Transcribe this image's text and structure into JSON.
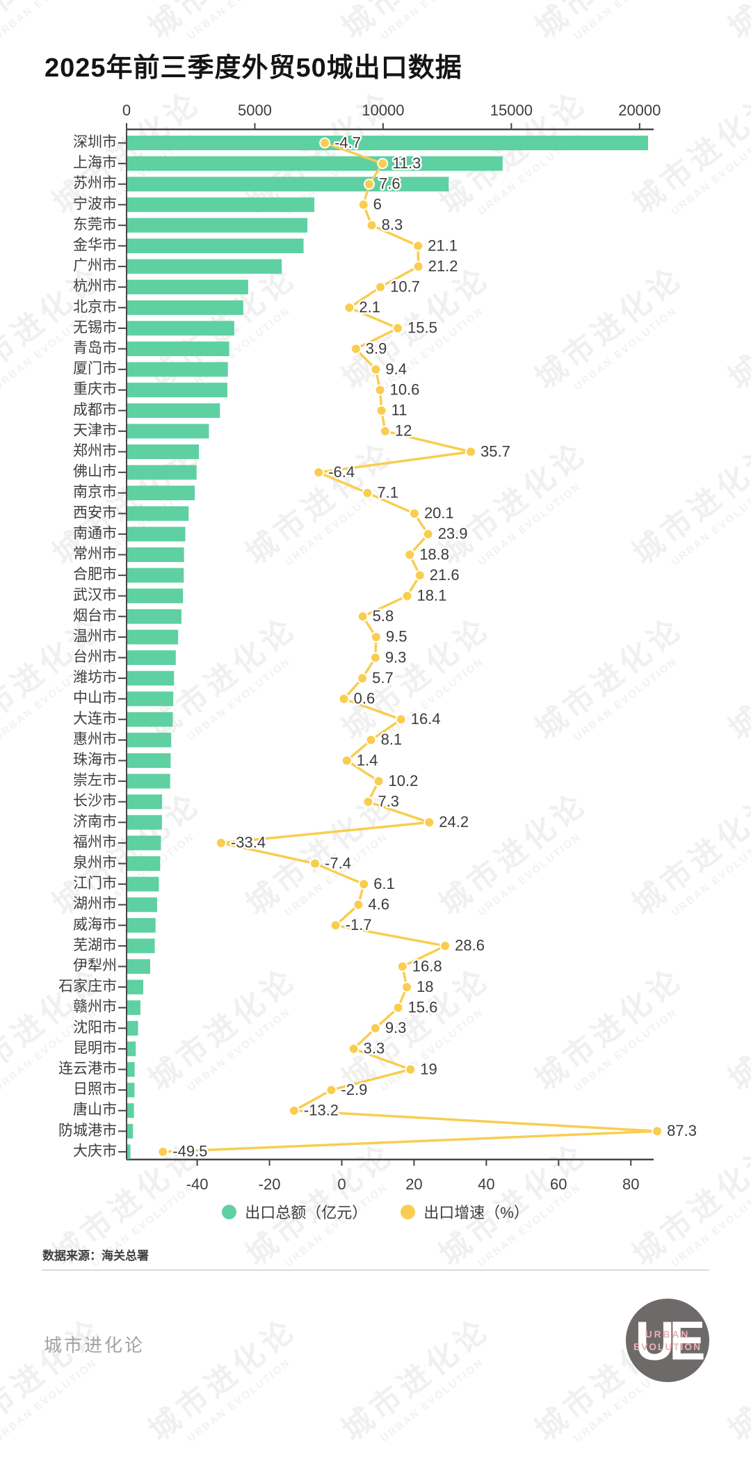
{
  "title": "2025年前三季度外贸50城出口数据",
  "source_note": "数据来源：海关总署",
  "watermark": {
    "text_cn": "城市进化论",
    "text_en": "URBAN EVOLUTION"
  },
  "legend": [
    {
      "label": "出口总额（亿元）",
      "color": "#5ed0a2"
    },
    {
      "label": "出口增速（%）",
      "color": "#f9cd4f"
    }
  ],
  "footer": {
    "brand_text": "城市进化论",
    "logo_monogram": "UE",
    "logo_line1": "URBAN",
    "logo_line2": "EVOLUTION"
  },
  "colors": {
    "bar": "#5ed0a2",
    "line": "#f9cd4f",
    "axis": "#454545",
    "text": "#3d3d3d",
    "value_label": "#3b3b3b"
  },
  "chart_data": {
    "type": "bar",
    "subtype": "horizontal bars (export value, top axis) + line with dots (growth %, bottom axis)",
    "title": "2025年前三季度外贸50城出口数据",
    "categories": [
      "深圳市",
      "上海市",
      "苏州市",
      "宁波市",
      "东莞市",
      "金华市",
      "广州市",
      "杭州市",
      "北京市",
      "无锡市",
      "青岛市",
      "厦门市",
      "重庆市",
      "成都市",
      "天津市",
      "郑州市",
      "佛山市",
      "南京市",
      "西安市",
      "南通市",
      "常州市",
      "合肥市",
      "武汉市",
      "烟台市",
      "温州市",
      "台州市",
      "潍坊市",
      "中山市",
      "大连市",
      "惠州市",
      "珠海市",
      "崇左市",
      "长沙市",
      "济南市",
      "福州市",
      "泉州市",
      "江门市",
      "湖州市",
      "威海市",
      "芜湖市",
      "伊犁州",
      "石家庄市",
      "赣州市",
      "沈阳市",
      "昆明市",
      "连云港市",
      "日照市",
      "唐山市",
      "防城港市",
      "大庆市"
    ],
    "series": [
      {
        "name": "出口总额（亿元）",
        "type": "bar",
        "axis": "top",
        "values": [
          20330,
          14660,
          12560,
          7320,
          7050,
          6900,
          6050,
          4740,
          4550,
          4200,
          4000,
          3950,
          3930,
          3640,
          3210,
          2820,
          2730,
          2660,
          2420,
          2290,
          2240,
          2230,
          2200,
          2140,
          2010,
          1920,
          1850,
          1820,
          1800,
          1740,
          1720,
          1700,
          1385,
          1380,
          1340,
          1310,
          1260,
          1190,
          1130,
          1100,
          920,
          650,
          540,
          450,
          360,
          315,
          310,
          290,
          250,
          150
        ]
      },
      {
        "name": "出口增速（%）",
        "type": "line",
        "axis": "bottom",
        "values": [
          -4.7,
          11.3,
          7.6,
          6,
          8.3,
          21.1,
          21.2,
          10.7,
          2.1,
          15.5,
          3.9,
          9.4,
          10.6,
          11,
          12,
          35.7,
          -6.4,
          7.1,
          20.1,
          23.9,
          18.8,
          21.6,
          18.1,
          5.8,
          9.5,
          9.3,
          5.7,
          0.6,
          16.4,
          8.1,
          1.4,
          10.2,
          7.3,
          24.2,
          -33.4,
          -7.4,
          6.1,
          4.6,
          -1.7,
          28.6,
          16.8,
          18,
          15.6,
          9.3,
          3.3,
          19,
          -2.9,
          -13.2,
          87.3,
          -49.5
        ]
      }
    ],
    "top_axis": {
      "ticks": [
        0,
        5000,
        10000,
        15000,
        20000
      ],
      "range": [
        0,
        20550
      ]
    },
    "bottom_axis": {
      "ticks": [
        -40,
        -20,
        0,
        20,
        40,
        60,
        80
      ],
      "range": [
        -59.6,
        86.3
      ]
    },
    "grid": false,
    "legend_position": "bottom"
  }
}
